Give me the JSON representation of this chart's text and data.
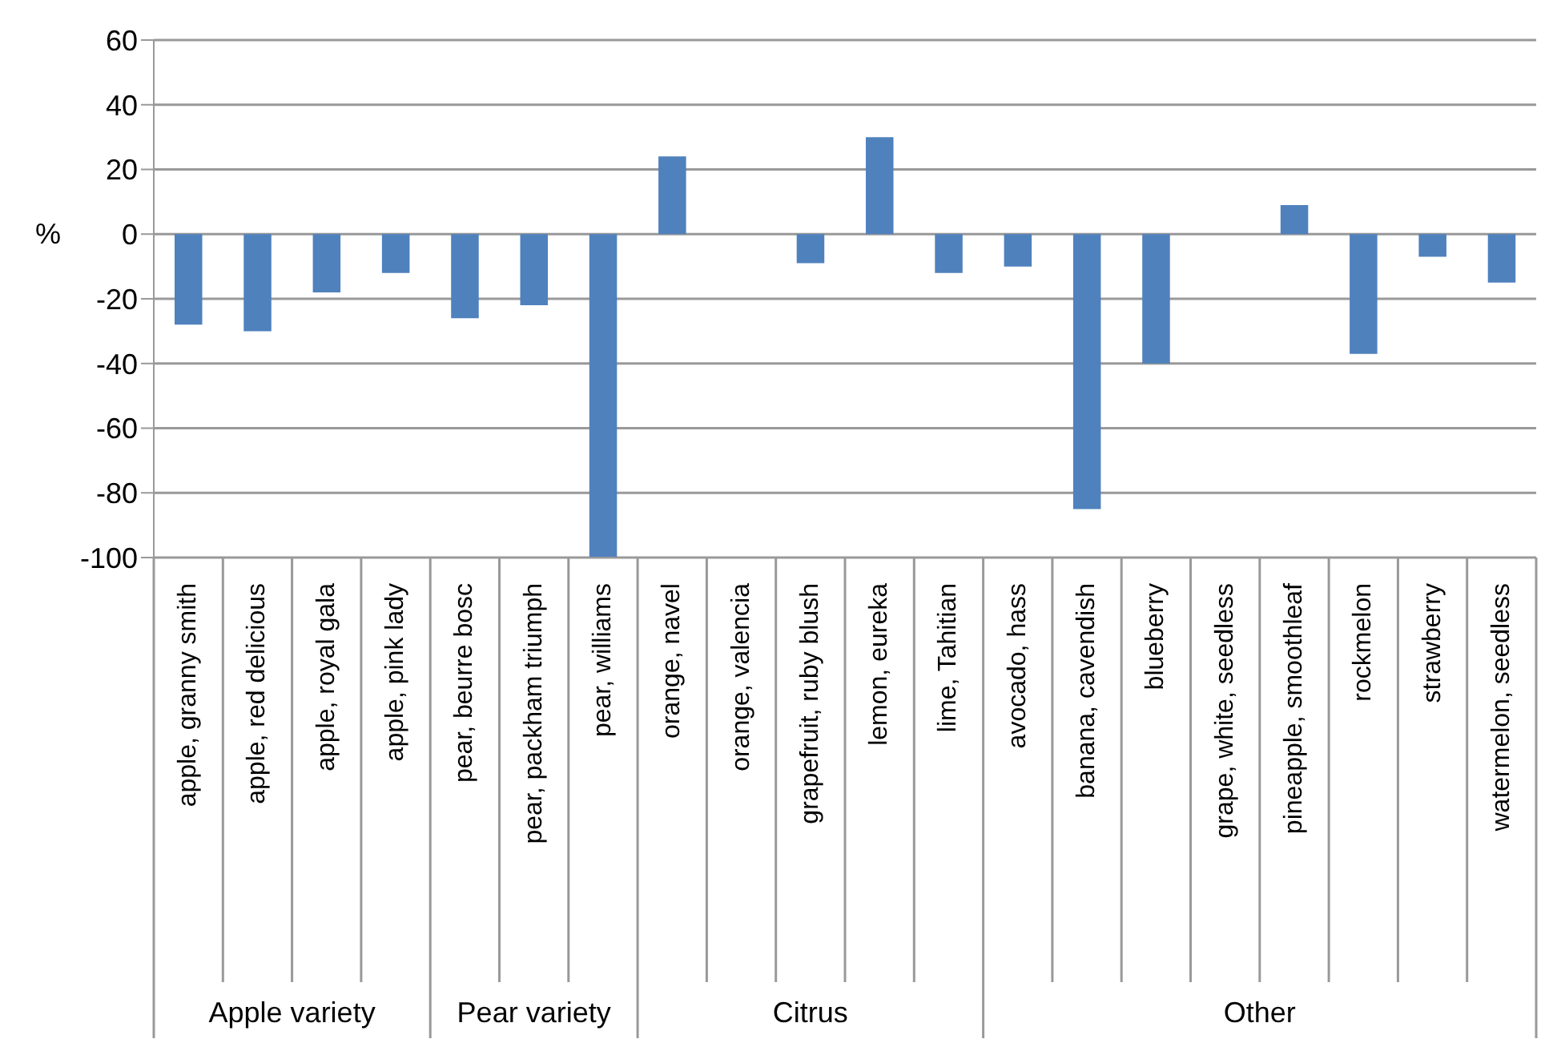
{
  "chart_data": {
    "type": "bar",
    "ylabel": "%",
    "categories": [
      "apple, granny smith",
      "apple, red delicious",
      "apple, royal gala",
      "apple, pink lady",
      "pear, beurre bosc",
      "pear, packham triumph",
      "pear, williams",
      "orange, navel",
      "orange, valencia",
      "grapefruit, ruby blush",
      "lemon, eureka",
      "lime, Tahitian",
      "avocado, hass",
      "banana, cavendish",
      "blueberry",
      "grape, white, seedless",
      "pineapple, smoothleaf",
      "rockmelon",
      "strawberry",
      "watermelon, seedless"
    ],
    "values": [
      -28,
      -30,
      -18,
      -12,
      -26,
      -22,
      -100,
      24,
      0,
      -9,
      30,
      -12,
      -10,
      -85,
      -40,
      0,
      9,
      -37,
      -7,
      -15
    ],
    "color": "#4f81bd",
    "ylim": [
      -100,
      60
    ],
    "yticks": [
      -100,
      -80,
      -60,
      -40,
      -20,
      0,
      20,
      40,
      60
    ],
    "grid": "y",
    "annotations": [
      "Apple variety",
      "Pear variety",
      "Citrus",
      "Other"
    ]
  }
}
